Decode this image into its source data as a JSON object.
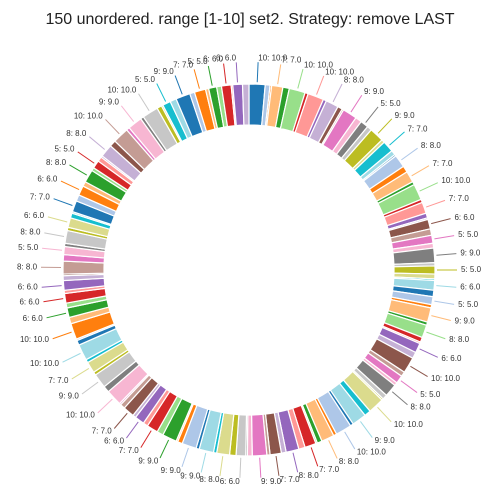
{
  "chart_data": {
    "type": "donut",
    "title": "150 unordered. range [1-10] set2. Strategy: remove LAST",
    "colors": [
      "#1f77b4",
      "#aec7e8",
      "#ff7f0e",
      "#ffbb78",
      "#2ca02c",
      "#98df8a",
      "#d62728",
      "#ff9896",
      "#9467bd",
      "#c5b0d5",
      "#8c564b",
      "#c49c94",
      "#e377c2",
      "#f7b6d2",
      "#7f7f7f",
      "#c7c7c7",
      "#bcbd22",
      "#dbdb8d",
      "#17becf",
      "#9edae5"
    ],
    "values": [
      10,
      3,
      1,
      7,
      4,
      10,
      2,
      10,
      2,
      8,
      3,
      1,
      9,
      4,
      5,
      3,
      9,
      2,
      7,
      3,
      1,
      8,
      4,
      7,
      2,
      10,
      2,
      7,
      3,
      1,
      6,
      4,
      5,
      3,
      9,
      2,
      5,
      3,
      1,
      6,
      4,
      5,
      2,
      9,
      2,
      8,
      3,
      1,
      6,
      4,
      10,
      3,
      5,
      2,
      8,
      3,
      1,
      10,
      4,
      9,
      2,
      10,
      2,
      8,
      3,
      1,
      7,
      4,
      8,
      3,
      7,
      2,
      9,
      3,
      1,
      6,
      4,
      8,
      2,
      9,
      2,
      9,
      3,
      1,
      9,
      4,
      7,
      3,
      6,
      2,
      7,
      3,
      1,
      10,
      4,
      9,
      2,
      7,
      2,
      10,
      3,
      1,
      10,
      4,
      6,
      3,
      6,
      2,
      6,
      3,
      1,
      8,
      4,
      5,
      2,
      8,
      2,
      6,
      3,
      1,
      7,
      4,
      6,
      3,
      8,
      2,
      5,
      3,
      1,
      8,
      4,
      10,
      2,
      9,
      2,
      10,
      3,
      1,
      5,
      4,
      9,
      3,
      7,
      2,
      5,
      3,
      6,
      1,
      6,
      4
    ],
    "value_labels": [
      "10: 10.0",
      null,
      null,
      "7: 7.0",
      null,
      "10: 10.0",
      null,
      "10: 10.0",
      null,
      "8: 8.0",
      null,
      null,
      "9: 9.0",
      null,
      "5: 5.0",
      null,
      "9: 9.0",
      null,
      "7: 7.0",
      null,
      null,
      "8: 8.0",
      null,
      "7: 7.0",
      null,
      "10: 10.0",
      null,
      "7: 7.0",
      null,
      null,
      "6: 6.0",
      null,
      "5: 5.0",
      null,
      "9: 9.0",
      null,
      "5: 5.0",
      null,
      null,
      "6: 6.0",
      null,
      "5: 5.0",
      null,
      "9: 9.0",
      null,
      "8: 8.0",
      null,
      null,
      "6: 6.0",
      null,
      "10: 10.0",
      null,
      "5: 5.0",
      null,
      "8: 8.0",
      null,
      null,
      "10: 10.0",
      null,
      "9: 9.0",
      null,
      "10: 10.0",
      null,
      "8: 8.0",
      null,
      null,
      "7: 7.0",
      null,
      "8: 8.0",
      null,
      "7: 7.0",
      null,
      "9: 9.0",
      null,
      null,
      "6: 6.0",
      null,
      "8: 8.0",
      null,
      "9: 9.0",
      null,
      "9: 9.0",
      null,
      null,
      "9: 9.0",
      null,
      "7: 7.0",
      null,
      "6: 6.0",
      null,
      "7: 7.0",
      null,
      null,
      "10: 10.0",
      null,
      "9: 9.0",
      null,
      "7: 7.0",
      null,
      "10: 10.0",
      null,
      null,
      "10: 10.0",
      null,
      "6: 6.0",
      null,
      "6: 6.0",
      null,
      "6: 6.0",
      null,
      null,
      "8: 8.0",
      null,
      "5: 5.0",
      null,
      "8: 8.0",
      null,
      "6: 6.0",
      null,
      null,
      "7: 7.0",
      null,
      "6: 6.0",
      null,
      "8: 8.0",
      null,
      "5: 5.0",
      null,
      null,
      "8: 8.0",
      null,
      "10: 10.0",
      null,
      "9: 9.0",
      null,
      "10: 10.0",
      null,
      null,
      "5: 5.0",
      null,
      "9: 9.0",
      null,
      "7: 7.0",
      null,
      "5: 5.0",
      null,
      "6: 6.0",
      null,
      "6: 6.0",
      null
    ]
  }
}
